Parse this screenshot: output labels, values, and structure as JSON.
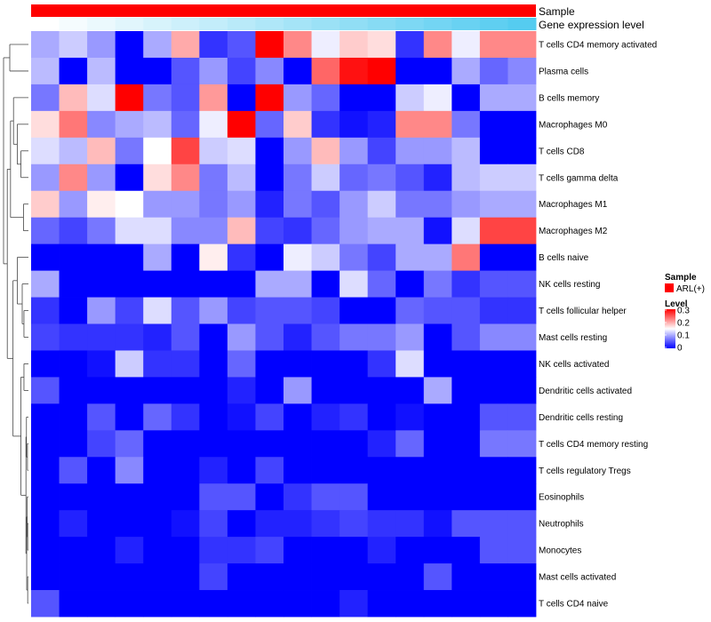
{
  "annotations": {
    "sample_label": "Sample",
    "gene_label": "Gene expression level"
  },
  "legend": {
    "sample_title": "Sample",
    "sample_entry": "ARL(+)",
    "sample_color": "#FF0000",
    "level_title": "Level",
    "ticks": [
      "0.3",
      "0.2",
      "0.1",
      "0"
    ]
  },
  "colors": {
    "low": "#0000FF",
    "mid": "#FFFFFF",
    "high": "#FF0000",
    "gene_bar_start": "#FFFFFF",
    "gene_bar_end": "#55CCF0"
  },
  "chart_data": {
    "type": "heatmap",
    "title": "",
    "value_range": [
      0,
      0.3
    ],
    "color_scale": "blue-white-red",
    "columns": 18,
    "rows": [
      "T cells CD4 memory activated",
      "Plasma cells",
      "B cells memory",
      "Macrophages M0",
      "T cells CD8",
      "T cells gamma delta",
      "Macrophages M1",
      "Macrophages M2",
      "B cells naive",
      "NK cells resting",
      "T cells follicular helper",
      "Mast cells resting",
      "NK cells activated",
      "Dendritic cells activated",
      "Dendritic cells resting",
      "T cells CD4 memory resting",
      "T cells regulatory  Tregs",
      "Eosinophils",
      "Neutrophils",
      "Monocytes",
      "Mast cells activated",
      "T cells CD4 naive"
    ],
    "values": [
      [
        0.1,
        0.12,
        0.09,
        0.0,
        0.1,
        0.2,
        0.03,
        0.05,
        0.3,
        0.22,
        0.14,
        0.18,
        0.17,
        0.03,
        0.22,
        0.14,
        0.22,
        0.22
      ],
      [
        0.11,
        0.0,
        0.11,
        0.0,
        0.0,
        0.05,
        0.09,
        0.04,
        0.08,
        0.0,
        0.24,
        0.29,
        0.3,
        0.0,
        0.0,
        0.1,
        0.06,
        0.08
      ],
      [
        0.07,
        0.19,
        0.13,
        0.3,
        0.07,
        0.05,
        0.21,
        0.0,
        0.3,
        0.09,
        0.06,
        0.0,
        0.0,
        0.12,
        0.14,
        0.0,
        0.1,
        0.1
      ],
      [
        0.17,
        0.23,
        0.08,
        0.1,
        0.11,
        0.06,
        0.14,
        0.3,
        0.06,
        0.18,
        0.03,
        0.01,
        0.02,
        0.22,
        0.22,
        0.07,
        0.0,
        0.0
      ],
      [
        0.13,
        0.11,
        0.19,
        0.07,
        0.15,
        0.26,
        0.12,
        0.13,
        0.0,
        0.09,
        0.19,
        0.09,
        0.04,
        0.09,
        0.09,
        0.11,
        0.0,
        0.0
      ],
      [
        0.09,
        0.22,
        0.09,
        0.0,
        0.17,
        0.22,
        0.07,
        0.11,
        0.0,
        0.07,
        0.12,
        0.06,
        0.07,
        0.05,
        0.02,
        0.11,
        0.12,
        0.12
      ],
      [
        0.18,
        0.09,
        0.16,
        0.15,
        0.09,
        0.09,
        0.07,
        0.09,
        0.02,
        0.07,
        0.05,
        0.09,
        0.12,
        0.07,
        0.07,
        0.09,
        0.1,
        0.1
      ],
      [
        0.06,
        0.04,
        0.07,
        0.13,
        0.13,
        0.08,
        0.08,
        0.19,
        0.04,
        0.03,
        0.06,
        0.09,
        0.1,
        0.1,
        0.01,
        0.13,
        0.26,
        0.26
      ],
      [
        0.0,
        0.0,
        0.0,
        0.0,
        0.1,
        0.0,
        0.16,
        0.03,
        0.0,
        0.14,
        0.12,
        0.07,
        0.04,
        0.1,
        0.1,
        0.23,
        0.0,
        0.0
      ],
      [
        0.1,
        0.0,
        0.0,
        0.0,
        0.0,
        0.0,
        0.0,
        0.0,
        0.1,
        0.1,
        0.0,
        0.13,
        0.06,
        0.0,
        0.07,
        0.03,
        0.05,
        0.05
      ],
      [
        0.03,
        0.0,
        0.09,
        0.04,
        0.13,
        0.05,
        0.09,
        0.04,
        0.05,
        0.05,
        0.04,
        0.0,
        0.0,
        0.06,
        0.05,
        0.05,
        0.03,
        0.03
      ],
      [
        0.04,
        0.03,
        0.03,
        0.03,
        0.02,
        0.05,
        0.0,
        0.09,
        0.05,
        0.02,
        0.05,
        0.07,
        0.07,
        0.09,
        0.0,
        0.05,
        0.08,
        0.08
      ],
      [
        0.0,
        0.0,
        0.01,
        0.12,
        0.03,
        0.03,
        0.0,
        0.06,
        0.0,
        0.0,
        0.0,
        0.0,
        0.03,
        0.13,
        0.0,
        0.0,
        0.0,
        0.0
      ],
      [
        0.05,
        0.0,
        0.0,
        0.0,
        0.0,
        0.0,
        0.0,
        0.02,
        0.0,
        0.09,
        0.0,
        0.0,
        0.0,
        0.0,
        0.1,
        0.0,
        0.0,
        0.0
      ],
      [
        0.0,
        0.0,
        0.05,
        0.0,
        0.06,
        0.03,
        0.0,
        0.01,
        0.04,
        0.0,
        0.02,
        0.03,
        0.0,
        0.01,
        0.0,
        0.0,
        0.05,
        0.05
      ],
      [
        0.0,
        0.0,
        0.04,
        0.06,
        0.0,
        0.0,
        0.0,
        0.0,
        0.0,
        0.0,
        0.0,
        0.0,
        0.02,
        0.06,
        0.0,
        0.0,
        0.07,
        0.07
      ],
      [
        0.0,
        0.05,
        0.0,
        0.08,
        0.0,
        0.0,
        0.02,
        0.0,
        0.04,
        0.0,
        0.0,
        0.0,
        0.0,
        0.0,
        0.0,
        0.0,
        0.0,
        0.0
      ],
      [
        0.0,
        0.0,
        0.0,
        0.0,
        0.0,
        0.0,
        0.05,
        0.05,
        0.0,
        0.03,
        0.05,
        0.05,
        0.0,
        0.0,
        0.0,
        0.0,
        0.0,
        0.0
      ],
      [
        0.0,
        0.02,
        0.0,
        0.0,
        0.0,
        0.01,
        0.04,
        0.0,
        0.02,
        0.02,
        0.03,
        0.04,
        0.03,
        0.03,
        0.01,
        0.05,
        0.05,
        0.05
      ],
      [
        0.0,
        0.0,
        0.0,
        0.02,
        0.0,
        0.0,
        0.03,
        0.03,
        0.04,
        0.0,
        0.0,
        0.0,
        0.02,
        0.0,
        0.0,
        0.0,
        0.05,
        0.05
      ],
      [
        0.0,
        0.0,
        0.0,
        0.0,
        0.0,
        0.0,
        0.04,
        0.0,
        0.0,
        0.0,
        0.0,
        0.0,
        0.0,
        0.0,
        0.05,
        0.0,
        0.0,
        0.0
      ],
      [
        0.05,
        0.0,
        0.0,
        0.0,
        0.0,
        0.0,
        0.0,
        0.0,
        0.0,
        0.0,
        0.0,
        0.02,
        0.0,
        0.0,
        0.0,
        0.0,
        0.0,
        0.0
      ]
    ]
  }
}
